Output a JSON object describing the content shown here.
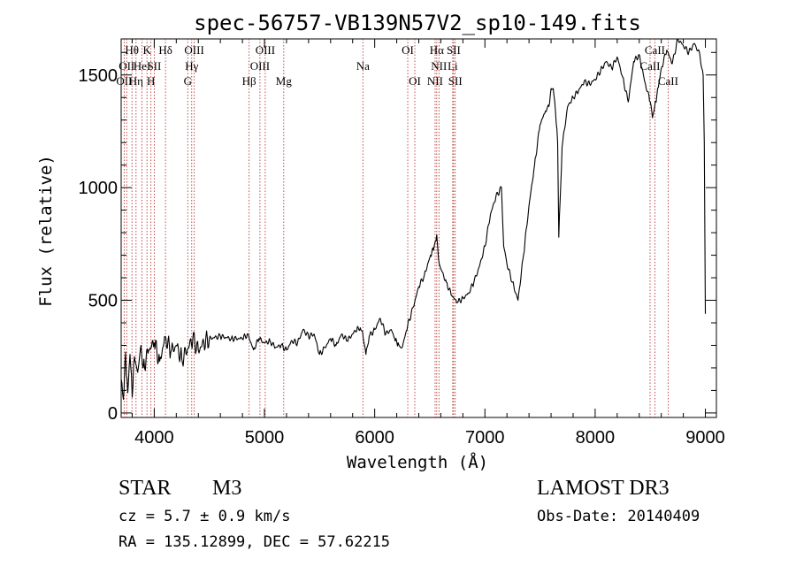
{
  "chart_data": {
    "type": "line",
    "title": "spec-56757-VB139N57V2_sp10-149.fits",
    "xlabel": "Wavelength (Å)",
    "ylabel": "Flux (relative)",
    "xlim": [
      3700,
      9100
    ],
    "ylim": [
      -20,
      1660
    ],
    "x_ticks": [
      4000,
      5000,
      6000,
      7000,
      8000,
      9000
    ],
    "y_ticks": [
      0,
      500,
      1000,
      1500
    ],
    "x_minor_step": 200,
    "y_minor_step": 100,
    "grid": false,
    "series": [
      {
        "name": "flux",
        "x": [
          3700,
          3720,
          3740,
          3760,
          3780,
          3800,
          3820,
          3850,
          3880,
          3900,
          3950,
          4000,
          4050,
          4100,
          4150,
          4200,
          4250,
          4300,
          4350,
          4400,
          4450,
          4500,
          4600,
          4700,
          4800,
          4850,
          4900,
          4950,
          5000,
          5050,
          5100,
          5150,
          5200,
          5250,
          5300,
          5350,
          5400,
          5450,
          5500,
          5550,
          5600,
          5650,
          5700,
          5750,
          5800,
          5850,
          5890,
          5920,
          5950,
          6000,
          6050,
          6100,
          6150,
          6180,
          6220,
          6250,
          6280,
          6300,
          6350,
          6400,
          6450,
          6500,
          6540,
          6563,
          6580,
          6600,
          6650,
          6700,
          6750,
          6800,
          6850,
          6900,
          6950,
          7000,
          7050,
          7100,
          7150,
          7170,
          7200,
          7250,
          7300,
          7350,
          7400,
          7450,
          7500,
          7550,
          7580,
          7600,
          7620,
          7640,
          7660,
          7670,
          7700,
          7750,
          7800,
          7850,
          7900,
          7950,
          8000,
          8050,
          8100,
          8150,
          8200,
          8250,
          8300,
          8350,
          8400,
          8450,
          8500,
          8520,
          8540,
          8560,
          8600,
          8650,
          8700,
          8750,
          8800,
          8850,
          8900,
          8950,
          8980,
          8990,
          9000
        ],
        "y": [
          150,
          60,
          270,
          90,
          260,
          70,
          250,
          180,
          300,
          200,
          280,
          310,
          230,
          340,
          270,
          300,
          240,
          280,
          330,
          280,
          310,
          330,
          340,
          330,
          330,
          350,
          280,
          330,
          310,
          320,
          290,
          300,
          280,
          320,
          310,
          370,
          340,
          350,
          260,
          290,
          330,
          300,
          350,
          320,
          350,
          380,
          360,
          260,
          340,
          370,
          420,
          350,
          370,
          330,
          300,
          290,
          350,
          390,
          470,
          560,
          610,
          690,
          740,
          790,
          680,
          640,
          580,
          520,
          490,
          510,
          530,
          580,
          650,
          740,
          880,
          960,
          1000,
          740,
          660,
          580,
          500,
          700,
          920,
          1100,
          1280,
          1340,
          1360,
          1440,
          1440,
          1340,
          1200,
          780,
          1180,
          1360,
          1400,
          1430,
          1470,
          1460,
          1480,
          1520,
          1560,
          1530,
          1580,
          1490,
          1380,
          1560,
          1590,
          1470,
          1380,
          1310,
          1360,
          1410,
          1530,
          1610,
          1550,
          1660,
          1630,
          1600,
          1640,
          1590,
          1500,
          1200,
          440
        ],
        "color": "#000000"
      }
    ],
    "spectral_lines": {
      "color": "#b22222",
      "lines": [
        {
          "x": 3727,
          "label": "OII",
          "row": 2
        },
        {
          "x": 3750,
          "label": "OII",
          "row": 1
        },
        {
          "x": 3798,
          "label": "Hθ",
          "row": 0
        },
        {
          "x": 3835,
          "label": "Hη",
          "row": 2
        },
        {
          "x": 3889,
          "label": "HeI",
          "row": 1
        },
        {
          "x": 3934,
          "label": "K",
          "row": 0
        },
        {
          "x": 3970,
          "label": "H",
          "row": 2
        },
        {
          "x": 4000,
          "label": "SII",
          "row": 1
        },
        {
          "x": 4102,
          "label": "Hδ",
          "row": 0
        },
        {
          "x": 4304,
          "label": "G",
          "row": 2
        },
        {
          "x": 4340,
          "label": "Hγ",
          "row": 1
        },
        {
          "x": 4363,
          "label": "OIII",
          "row": 0
        },
        {
          "x": 4861,
          "label": "Hβ",
          "row": 2
        },
        {
          "x": 4959,
          "label": "OIII",
          "row": 1
        },
        {
          "x": 5007,
          "label": "OIII",
          "row": 0
        },
        {
          "x": 5175,
          "label": "Mg",
          "row": 2
        },
        {
          "x": 5893,
          "label": "Na",
          "row": 1
        },
        {
          "x": 6300,
          "label": "OI",
          "row": 0
        },
        {
          "x": 6364,
          "label": "OI",
          "row": 2
        },
        {
          "x": 6548,
          "label": "NII",
          "row": 2
        },
        {
          "x": 6563,
          "label": "Hα",
          "row": 0
        },
        {
          "x": 6583,
          "label": "NII",
          "row": 1
        },
        {
          "x": 6708,
          "label": "Li",
          "row": 1
        },
        {
          "x": 6716,
          "label": "SII",
          "row": 0
        },
        {
          "x": 6731,
          "label": "SII",
          "row": 2
        },
        {
          "x": 8498,
          "label": "CaII",
          "row": 1
        },
        {
          "x": 8542,
          "label": "CaII",
          "row": 0
        },
        {
          "x": 8662,
          "label": "CaII",
          "row": 2
        }
      ]
    }
  },
  "info": {
    "object_class": "STAR",
    "subclass": "M3",
    "survey": "LAMOST DR3",
    "cz": "cz = 5.7 ± 0.9 km/s",
    "obs_date": "Obs-Date: 20140409",
    "coords": "RA = 135.12899, DEC =  57.62215"
  }
}
